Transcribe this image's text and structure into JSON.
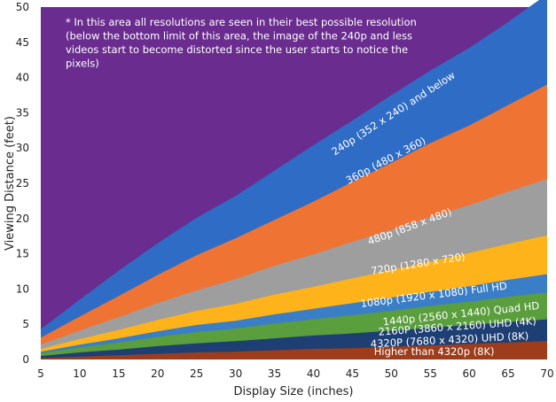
{
  "chart_data": {
    "type": "area",
    "stacked": true,
    "xlabel": "Display Size (inches)",
    "ylabel": "Viewing Distance (feet)",
    "xlim": [
      5,
      70
    ],
    "ylim": [
      0,
      50
    ],
    "xticks": [
      5,
      10,
      15,
      20,
      25,
      30,
      35,
      40,
      45,
      50,
      55,
      60,
      65,
      70
    ],
    "yticks": [
      0,
      5,
      10,
      15,
      20,
      25,
      30,
      35,
      40,
      45,
      50
    ],
    "background_color": "#6a2c8f",
    "x": [
      5,
      10,
      15,
      20,
      25,
      30,
      35,
      40,
      45,
      50,
      55,
      60,
      65,
      70
    ],
    "series": [
      {
        "name": "Higher than 4320p (8K)",
        "color": "#9e3d1b",
        "values": [
          0.2,
          0.4,
          0.6,
          0.8,
          1.0,
          1.1,
          1.3,
          1.5,
          1.6,
          1.8,
          2.0,
          2.2,
          2.4,
          2.6
        ]
      },
      {
        "name": "4320P (7680 x 4320) UHD (8K)",
        "color": "#1e3f73",
        "values": [
          0.3,
          0.6,
          0.8,
          1.1,
          1.3,
          1.5,
          1.7,
          1.9,
          2.1,
          2.3,
          2.5,
          2.7,
          2.9,
          3.1
        ]
      },
      {
        "name": "2160P (3860 x 2160) UHD (4K)",
        "color": "#5a9e3d",
        "values": [
          0.4,
          0.7,
          1.0,
          1.3,
          1.6,
          1.8,
          2.1,
          2.3,
          2.6,
          2.8,
          3.1,
          3.3,
          3.6,
          3.8
        ]
      },
      {
        "name": "1440p (2560 x 1440) Quad HD",
        "color": "#3a7ec7",
        "values": [
          0.2,
          0.4,
          0.6,
          0.8,
          1.0,
          1.1,
          1.3,
          1.5,
          1.7,
          1.9,
          2.0,
          2.2,
          2.4,
          2.6
        ]
      },
      {
        "name": "1080p (1920 x 1080) Full HD",
        "color": "#ffb31a",
        "values": [
          0.4,
          0.8,
          1.2,
          1.6,
          2.0,
          2.4,
          2.8,
          3.1,
          3.5,
          3.9,
          4.3,
          4.7,
          5.1,
          5.5
        ]
      },
      {
        "name": "720p (1280 x 720)",
        "color": "#9e9e9e",
        "values": [
          0.6,
          1.2,
          1.8,
          2.4,
          2.9,
          3.5,
          4.1,
          4.6,
          5.2,
          5.7,
          6.3,
          6.8,
          7.4,
          8.0
        ]
      },
      {
        "name": "480p (858 x 480)",
        "color": "#ef7433",
        "values": [
          1.0,
          2.0,
          3.0,
          4.0,
          5.0,
          5.8,
          6.5,
          7.5,
          8.5,
          9.5,
          10.5,
          11.3,
          12.3,
          13.4
        ]
      },
      {
        "name": "360p (480 x 360)",
        "color": "#2f6cc6",
        "values": [
          1.2,
          2.4,
          3.6,
          4.5,
          5.3,
          6.0,
          7.0,
          8.0,
          8.7,
          9.6,
          10.3,
          11.0,
          11.8,
          12.8
        ]
      },
      {
        "name": "240p (352 x 240) and below",
        "color": "#6a2c8f",
        "values": [
          0,
          0,
          0,
          0,
          0,
          0,
          0,
          0,
          0,
          0,
          0,
          0,
          0,
          0
        ]
      }
    ],
    "annotation": "* In this area all resolutions are seen in their best possible resolution (below the bottom limit of this area, the image of the 240p and less videos start to become distorted since the user starts to notice the pixels)",
    "annotation_lines": [
      "* In this area all resolutions are seen in their best possible resolution",
      "(below the bottom limit of this area, the image of the 240p and less",
      "videos start to become distorted since the user starts to notice the",
      "pixels)"
    ],
    "band_labels": [
      {
        "text": "240p (352 x 240) and below",
        "x": 50.5,
        "y": 34.5,
        "angle": -33
      },
      {
        "text": "360p (480 x 360)",
        "x": 49.5,
        "y": 27.8,
        "angle": -28
      },
      {
        "text": "480p (858 x 480)",
        "x": 52.5,
        "y": 18.4,
        "angle": -20
      },
      {
        "text": "720p (1280 x 720)",
        "x": 53.5,
        "y": 13.1,
        "angle": -9
      },
      {
        "text": "1080p (1920 x 1080) Full HD",
        "x": 55.5,
        "y": 8.7,
        "angle": -7
      },
      {
        "text": "1440p (2560 x 1440) Quad HD",
        "x": 59.0,
        "y": 6.0,
        "angle": -6
      },
      {
        "text": "2160P (3860 x 2160) UHD (4K)",
        "x": 58.5,
        "y": 4.2,
        "angle": -4
      },
      {
        "text": "4320P (7680 x 4320) UHD (8K)",
        "x": 57.5,
        "y": 2.3,
        "angle": -3
      },
      {
        "text": "Higher than 4320p (8K)",
        "x": 55.5,
        "y": 0.6,
        "angle": 0
      }
    ]
  }
}
